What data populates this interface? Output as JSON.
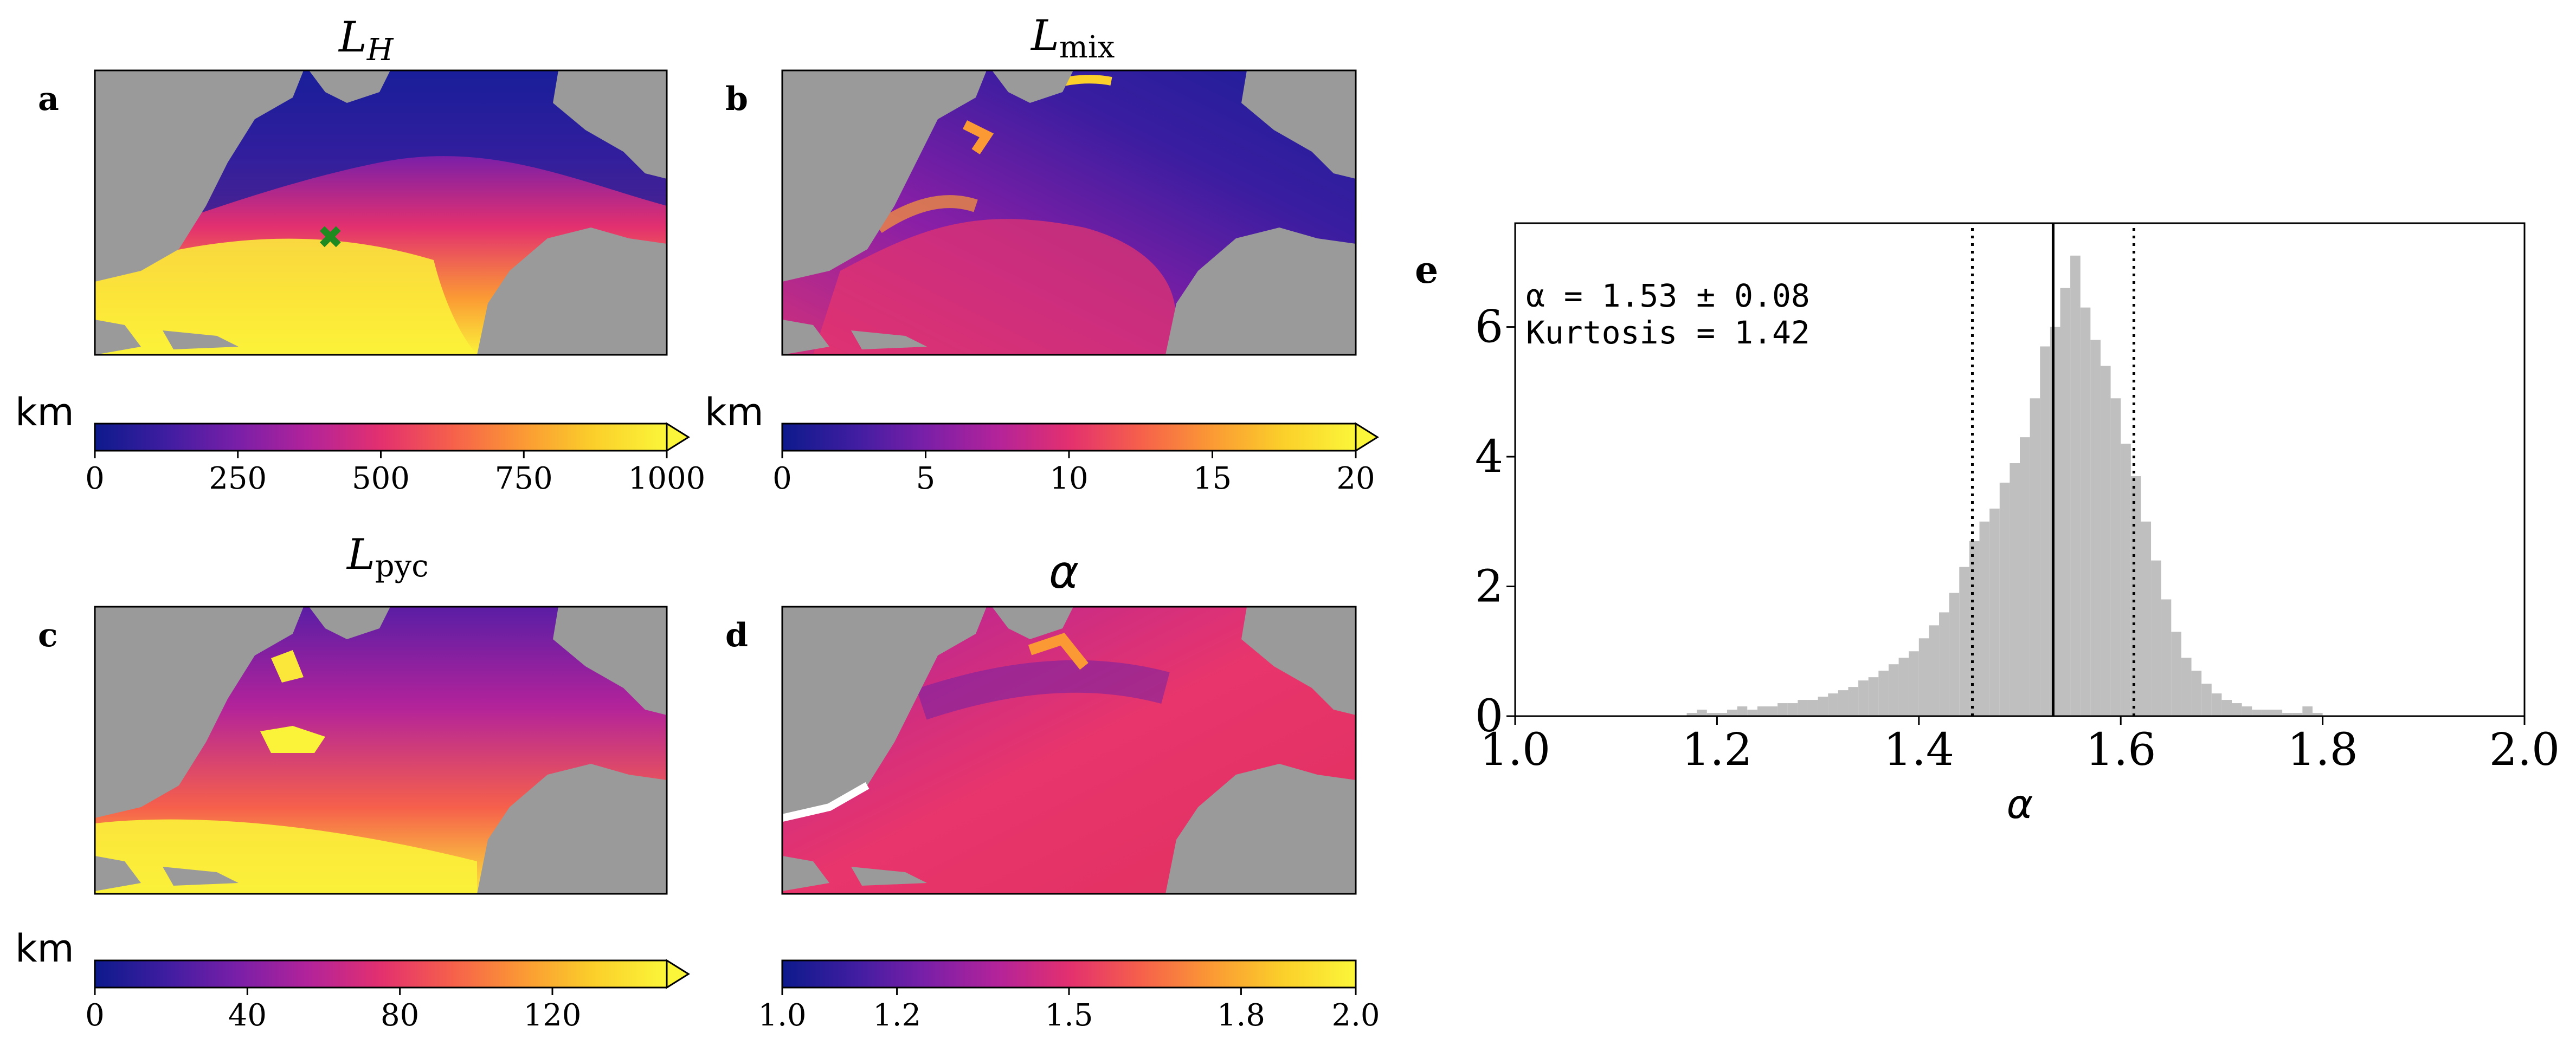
{
  "panels": [
    {
      "letter": "a",
      "title_main": "L",
      "title_sub": "H",
      "cbar_unit": "km",
      "cbar_ticks": [
        "0",
        "250",
        "500",
        "750",
        "1000"
      ],
      "cbar_range": [
        0,
        1000
      ],
      "marker": "green-x"
    },
    {
      "letter": "b",
      "title_main": "L",
      "title_sub": "mix",
      "cbar_unit": "km",
      "cbar_ticks": [
        "0",
        "5",
        "10",
        "15",
        "20"
      ],
      "cbar_range": [
        0,
        20
      ]
    },
    {
      "letter": "c",
      "title_main": "L",
      "title_sub": "pyc",
      "cbar_unit": "km",
      "cbar_ticks": [
        "0",
        "40",
        "80",
        "120"
      ],
      "cbar_range": [
        0,
        150
      ]
    },
    {
      "letter": "d",
      "title_main": "α",
      "title_sub": "",
      "cbar_unit": "",
      "cbar_ticks": [
        "1.0",
        "1.2",
        "1.5",
        "1.8",
        "2.0"
      ],
      "cbar_range": [
        1.0,
        2.0
      ]
    }
  ],
  "colormap": [
    "#0d1a8c",
    "#3f1da1",
    "#7a1fa8",
    "#b3239a",
    "#e3306f",
    "#f6604b",
    "#fb9a34",
    "#fbd02a",
    "#fbf63a"
  ],
  "land_color": "#9a9a9a",
  "chart_data": {
    "type": "bar",
    "panel_letter": "e",
    "xlabel": "α",
    "ylabel": "",
    "xlim": [
      1.0,
      2.0
    ],
    "ylim": [
      0,
      7.6
    ],
    "xticks": [
      "1.0",
      "1.2",
      "1.4",
      "1.6",
      "1.8",
      "2.0"
    ],
    "yticks": [
      "0",
      "2",
      "4",
      "6"
    ],
    "bar_color": "#bfbfbf",
    "bin_width": 0.01,
    "x": [
      1.175,
      1.185,
      1.195,
      1.205,
      1.215,
      1.225,
      1.235,
      1.245,
      1.255,
      1.265,
      1.275,
      1.285,
      1.295,
      1.305,
      1.315,
      1.325,
      1.335,
      1.345,
      1.355,
      1.365,
      1.375,
      1.385,
      1.395,
      1.405,
      1.415,
      1.425,
      1.435,
      1.445,
      1.455,
      1.465,
      1.475,
      1.485,
      1.495,
      1.505,
      1.515,
      1.525,
      1.535,
      1.545,
      1.555,
      1.565,
      1.575,
      1.585,
      1.595,
      1.605,
      1.615,
      1.625,
      1.635,
      1.645,
      1.655,
      1.665,
      1.675,
      1.685,
      1.695,
      1.705,
      1.715,
      1.725,
      1.735,
      1.745,
      1.755,
      1.765,
      1.775,
      1.785,
      1.795
    ],
    "values": [
      0.05,
      0.1,
      0.05,
      0.05,
      0.1,
      0.15,
      0.1,
      0.15,
      0.15,
      0.2,
      0.2,
      0.25,
      0.25,
      0.3,
      0.35,
      0.4,
      0.45,
      0.55,
      0.6,
      0.7,
      0.8,
      0.9,
      1.0,
      1.2,
      1.4,
      1.6,
      1.9,
      2.3,
      2.7,
      3.0,
      3.2,
      3.6,
      3.9,
      4.3,
      4.9,
      5.7,
      6.0,
      6.6,
      7.1,
      6.3,
      5.8,
      5.4,
      4.9,
      4.2,
      3.7,
      3.0,
      2.4,
      1.8,
      1.3,
      0.9,
      0.7,
      0.5,
      0.35,
      0.25,
      0.2,
      0.15,
      0.1,
      0.1,
      0.1,
      0.05,
      0.05,
      0.15,
      0.05
    ],
    "vlines": [
      {
        "x": 1.533,
        "style": "solid"
      },
      {
        "x": 1.453,
        "style": "dotted"
      },
      {
        "x": 1.613,
        "style": "dotted"
      }
    ],
    "annotation_line1": "α = 1.53 ± 0.08",
    "annotation_line2": "Kurtosis = 1.42"
  }
}
